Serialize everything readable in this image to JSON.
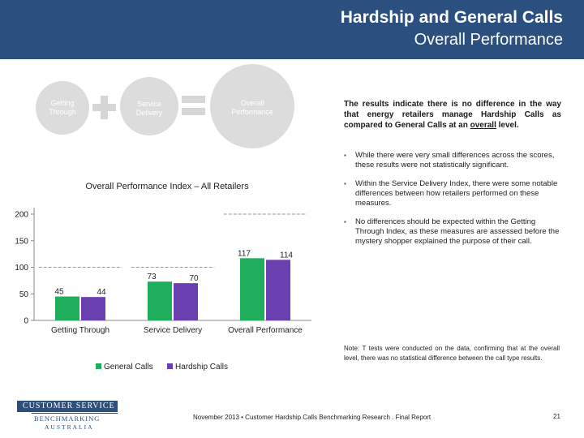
{
  "header": {
    "title": "Hardship and General Calls",
    "subtitle": "Overall Performance"
  },
  "equation": {
    "getting_through": "Getting Through",
    "service_delivery": "Service Delivery",
    "overall_performance": "Overall Performance"
  },
  "summary": {
    "text_before": "The results indicate there is no difference in the way that energy retailers manage Hardship Calls as compared to General Calls at an ",
    "text_underlined": "overall",
    "text_after": " level."
  },
  "bullets": [
    "While there were very small differences across the scores, these results were not statistically significant.",
    "Within the Service Delivery Index, there were some notable differences between how retailers performed on these measures.",
    "No differences should be expected within the Getting Through Index, as these measures are assessed before the mystery shopper explained the purpose of their call."
  ],
  "note": "Note: T tests were conducted on the data, confirming that at the overall level, there was no statistical difference between the call type results.",
  "logo": {
    "line1": "CUSTOMER SERVICE",
    "line2": "BENCHMARKING",
    "line3": "AUSTRALIA"
  },
  "footer": {
    "text": "November 2013  •  Customer Hardship Calls Benchmarking Research   .  Final Report",
    "page": "21"
  },
  "colors": {
    "header_bg": "#2b4f7e",
    "general": "#1fae5b",
    "hardship": "#6a3fb0"
  },
  "chart_data": {
    "type": "bar",
    "title": "Overall Performance Index – All Retailers",
    "categories": [
      "Getting Through",
      "Service Delivery",
      "Overall Performance"
    ],
    "series": [
      {
        "name": "General Calls",
        "values": [
          45,
          73,
          117
        ]
      },
      {
        "name": "Hardship Calls",
        "values": [
          44,
          70,
          114
        ]
      }
    ],
    "reference_lines": [
      {
        "category": "Getting Through",
        "value": 100
      },
      {
        "category": "Service Delivery",
        "value": 100
      },
      {
        "category": "Overall Performance",
        "value": 200
      }
    ],
    "yticks": [
      0,
      50,
      100,
      150,
      200
    ],
    "ylim": [
      0,
      200
    ],
    "xlabel": "",
    "ylabel": "",
    "legend_position": "bottom"
  }
}
